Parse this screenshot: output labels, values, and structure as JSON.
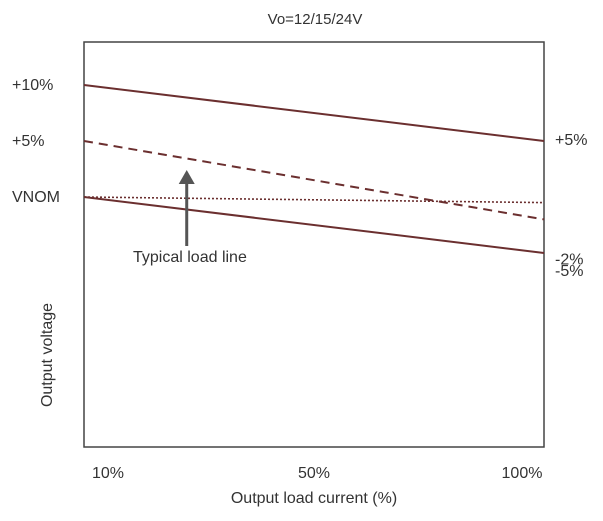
{
  "chart_data": {
    "type": "line",
    "title": "Vo=12/15/24V",
    "xlabel": "Output load current (%)",
    "ylabel": "Output voltage",
    "x_ticks": [
      "10%",
      "50%",
      "100%"
    ],
    "xlim": [
      10,
      100
    ],
    "left_ticks": [
      {
        "label": "+10%",
        "value": 10
      },
      {
        "label": "+5%",
        "value": 5
      },
      {
        "label": "VNOM",
        "value": 0
      }
    ],
    "right_ticks": [
      {
        "label": "+5%",
        "value": 5
      },
      {
        "label": "-2%",
        "value": -2
      },
      {
        "label": "-5%",
        "value": -5
      }
    ],
    "series": [
      {
        "x": [
          10,
          100
        ],
        "values": [
          10,
          5
        ],
        "style": "solid",
        "color": "#6b2f2f"
      },
      {
        "x": [
          10,
          100
        ],
        "values": [
          5,
          -2
        ],
        "style": "dashed",
        "color": "#6b2f2f"
      },
      {
        "x": [
          10,
          100
        ],
        "values": [
          0,
          -0.5
        ],
        "style": "dotted",
        "color": "#6b2f2f"
      },
      {
        "x": [
          10,
          100
        ],
        "values": [
          0,
          -5
        ],
        "style": "solid",
        "color": "#6b2f2f"
      }
    ],
    "annotation": {
      "text": "Typical load line",
      "points_to_x": 30
    },
    "grid": false,
    "colors": {
      "axes": "#444444",
      "line": "#6b2f2f",
      "arrow": "#555555",
      "text": "#333333"
    }
  }
}
